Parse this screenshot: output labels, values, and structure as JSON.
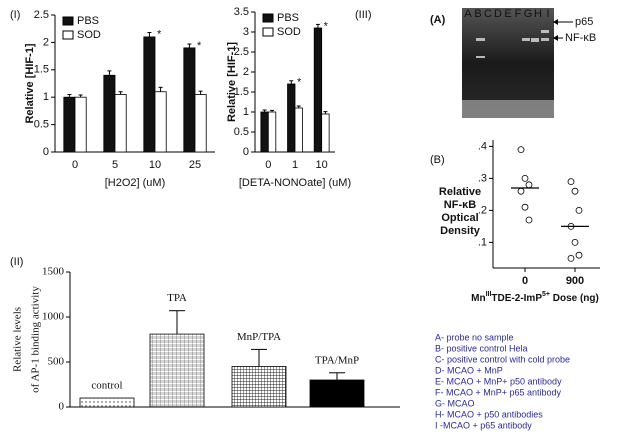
{
  "chart_data": [
    {
      "type": "bar",
      "panel": "(I)",
      "ylabel": "Relative [HIF-1]",
      "xlabel": "[H2O2] (uM)",
      "categories": [
        "0",
        "5",
        "10",
        "25"
      ],
      "series": [
        {
          "name": "PBS",
          "color": "#111",
          "values": [
            1,
            1.4,
            2.1,
            1.9
          ],
          "errors": [
            0.05,
            0.08,
            0.08,
            0.07
          ],
          "stars": [
            null,
            null,
            "*",
            "*"
          ]
        },
        {
          "name": "SOD",
          "color": "#fff",
          "values": [
            1,
            1.05,
            1.1,
            1.05
          ],
          "errors": [
            0.04,
            0.05,
            0.08,
            0.06
          ]
        }
      ],
      "ylim": [
        0,
        2.5
      ],
      "yticks": [
        0,
        0.5,
        1,
        1.5,
        2,
        2.5
      ],
      "legend": "upper left"
    },
    {
      "type": "bar",
      "panel": "(III)",
      "ylabel": "Relative [HIF-1]",
      "xlabel": "[DETA-NONOate] (uM)",
      "categories": [
        "0",
        "1",
        "10"
      ],
      "series": [
        {
          "name": "PBS",
          "color": "#111",
          "values": [
            1,
            1.7,
            3.1
          ],
          "errors": [
            0.05,
            0.08,
            0.09
          ],
          "stars": [
            null,
            "*",
            "*"
          ]
        },
        {
          "name": "SOD",
          "color": "#fff",
          "values": [
            1,
            1.1,
            0.95
          ],
          "errors": [
            0.04,
            0.05,
            0.06
          ]
        }
      ],
      "ylim": [
        0,
        3.5
      ],
      "yticks": [
        0,
        0.5,
        1,
        1.5,
        2,
        2.5,
        3,
        3.5
      ],
      "legend": "upper left"
    },
    {
      "type": "bar1",
      "panel": "(II)",
      "ylabel": [
        "Relative levels",
        "of AP-1 binding activity"
      ],
      "categories": [
        "control",
        "TPA",
        "MnP/TPA",
        "TPA/MnP"
      ],
      "values": [
        100,
        810,
        450,
        300
      ],
      "errors": [
        0,
        260,
        190,
        80
      ],
      "colors": [
        "dots",
        "hatch",
        "grid",
        "#000"
      ],
      "ylim": [
        0,
        1500
      ],
      "yticks": [
        0,
        500,
        1000,
        1500
      ]
    },
    {
      "type": "dot",
      "panel": "(B)",
      "ylabel": [
        "Relative",
        "NF-κB",
        "Optical",
        "Density"
      ],
      "xlabel": [
        "Mn",
        "III",
        "TDE-2-ImP",
        "5+",
        " Dose (ng)"
      ],
      "categories": [
        "0",
        "900"
      ],
      "values": [
        [
          0.39,
          0.3,
          0.28,
          0.26,
          0.21,
          0.17
        ],
        [
          0.29,
          0.26,
          0.2,
          0.15,
          0.1,
          0.06,
          0.05
        ]
      ],
      "means": [
        0.27,
        0.15
      ],
      "ylim": [
        0.02,
        0.42
      ],
      "yticks": [
        {
          "value": 0.1,
          "label": ".1"
        },
        {
          "value": 0.2,
          "label": ".2"
        },
        {
          "value": 0.3,
          "label": ".3"
        },
        {
          "value": 0.4,
          "label": ".4"
        }
      ]
    }
  ],
  "gel": {
    "panel": "(A)",
    "lanes": [
      "A",
      "B",
      "C",
      "D",
      "E",
      "F",
      "G",
      "H",
      "I"
    ],
    "markers": [
      "p65",
      "NF-κB"
    ]
  },
  "key": [
    "A- probe no sample",
    "B- positive control Hela",
    "C- positive control with cold probe",
    "D- MCAO + MnP",
    "E- MCAO + MnP+ p50 antibody",
    "F- MCAO + MnP+ p65 antibody",
    "G- MCAO",
    "H- MCAO + p50 antibodies",
    "I -MCAO + p65 antibody"
  ]
}
